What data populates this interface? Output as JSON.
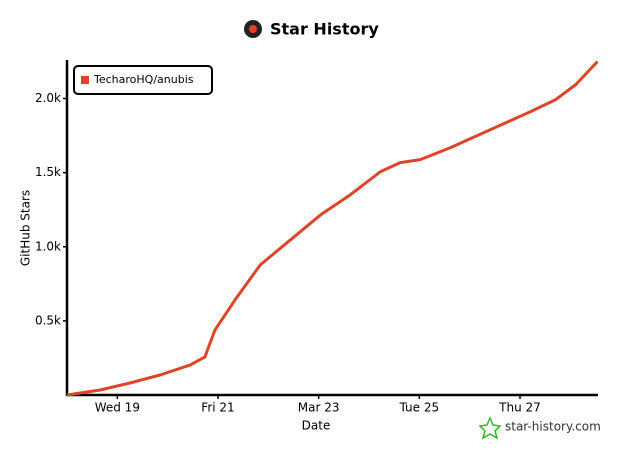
{
  "chart_data": {
    "type": "line",
    "title": "Star History",
    "x_label": "Date",
    "y_label": "GitHub Stars",
    "watermark": "star-history.com",
    "xlim": [
      18,
      28.55
    ],
    "ylim": [
      0,
      2260
    ],
    "xticks": [
      {
        "value": 19,
        "label": "Wed 19"
      },
      {
        "value": 21,
        "label": "Fri 21"
      },
      {
        "value": 23,
        "label": "Mar 23"
      },
      {
        "value": 25,
        "label": "Tue 25"
      },
      {
        "value": 27,
        "label": "Thu 27"
      }
    ],
    "yticks": [
      {
        "value": 500,
        "label": "0.5k"
      },
      {
        "value": 1000,
        "label": "1.0k"
      },
      {
        "value": 1500,
        "label": "1.5k"
      },
      {
        "value": 2000,
        "label": "2.0k"
      }
    ],
    "legend": "top-left",
    "series": [
      {
        "name": "TecharoHQ/anubis",
        "color": "#dd4528",
        "x": [
          18,
          18.66,
          19.25,
          19.85,
          20.45,
          20.74,
          20.94,
          21.34,
          21.84,
          22.44,
          23.04,
          23.63,
          24.23,
          24.62,
          25.02,
          25.62,
          26.42,
          27.21,
          27.71,
          28.11,
          28.54
        ],
        "values": [
          0,
          34,
          81,
          135,
          203,
          257,
          439,
          642,
          878,
          1047,
          1216,
          1351,
          1507,
          1568,
          1588,
          1669,
          1791,
          1912,
          1993,
          2095,
          2250
        ]
      }
    ]
  }
}
